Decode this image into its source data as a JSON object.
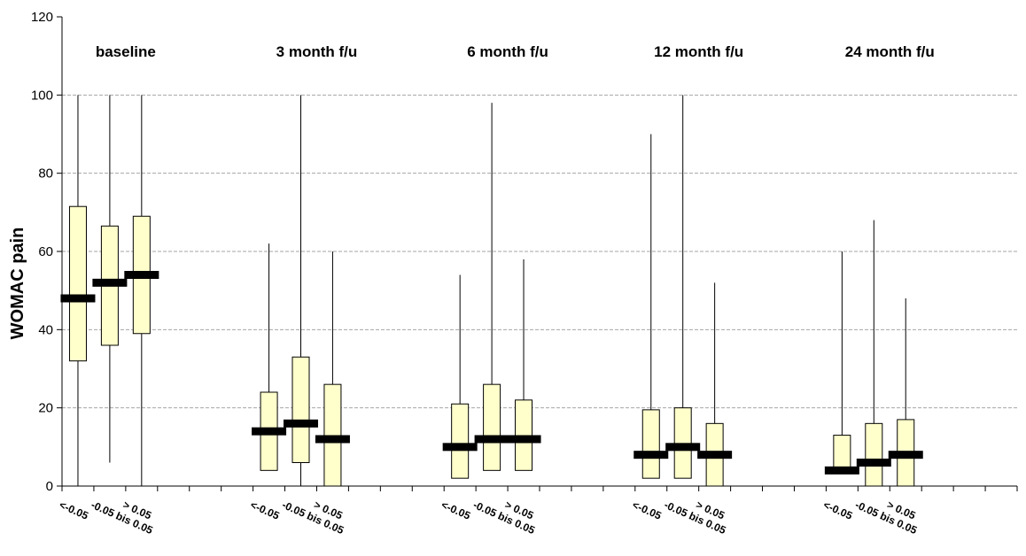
{
  "chart_data": {
    "type": "boxplot",
    "ylabel": "WOMAC pain",
    "xlabel": "",
    "ylim": [
      0,
      120
    ],
    "yticks": [
      0,
      20,
      40,
      60,
      80,
      100,
      120
    ],
    "grid": "horizontal-dashed",
    "colors": {
      "box_fill": "#ffffcc",
      "box_stroke": "#000000",
      "median": "#000000",
      "grid": "#a6a6a6"
    },
    "categories": [
      "<-0.05",
      "-0.05 bis 0.05",
      "> 0.05"
    ],
    "groups": [
      {
        "label": "baseline",
        "boxes": [
          {
            "category": "<-0.05",
            "min": 0,
            "q1": 32,
            "median": 48,
            "q3": 71.5,
            "max": 100
          },
          {
            "category": "-0.05 bis 0.05",
            "min": 6,
            "q1": 36,
            "median": 52,
            "q3": 66.5,
            "max": 100
          },
          {
            "category": "> 0.05",
            "min": 0,
            "q1": 39,
            "median": 54,
            "q3": 69,
            "max": 100
          }
        ]
      },
      {
        "label": "3 month f/u",
        "boxes": [
          {
            "category": "<-0.05",
            "min": 4,
            "q1": 4,
            "median": 14,
            "q3": 24,
            "max": 62
          },
          {
            "category": "-0.05 bis 0.05",
            "min": 0,
            "q1": 6,
            "median": 16,
            "q3": 33,
            "max": 100
          },
          {
            "category": "> 0.05",
            "min": 0,
            "q1": 0,
            "median": 12,
            "q3": 26,
            "max": 60
          }
        ]
      },
      {
        "label": "6 month f/u",
        "boxes": [
          {
            "category": "<-0.05",
            "min": 2,
            "q1": 2,
            "median": 10,
            "q3": 21,
            "max": 54
          },
          {
            "category": "-0.05 bis 0.05",
            "min": 4,
            "q1": 4,
            "median": 12,
            "q3": 26,
            "max": 98
          },
          {
            "category": "> 0.05",
            "min": 4,
            "q1": 4,
            "median": 12,
            "q3": 22,
            "max": 58
          }
        ]
      },
      {
        "label": "12 month f/u",
        "boxes": [
          {
            "category": "<-0.05",
            "min": 2,
            "q1": 2,
            "median": 8,
            "q3": 19.5,
            "max": 90
          },
          {
            "category": "-0.05 bis 0.05",
            "min": 2,
            "q1": 2,
            "median": 10,
            "q3": 20,
            "max": 100
          },
          {
            "category": "> 0.05",
            "min": 0,
            "q1": 0,
            "median": 8,
            "q3": 16,
            "max": 52
          }
        ]
      },
      {
        "label": "24 month f/u",
        "boxes": [
          {
            "category": "<-0.05",
            "min": 4,
            "q1": 4,
            "median": 4,
            "q3": 13,
            "max": 60
          },
          {
            "category": "-0.05 bis 0.05",
            "min": 0,
            "q1": 0,
            "median": 6,
            "q3": 16,
            "max": 68
          },
          {
            "category": "> 0.05",
            "min": 0,
            "q1": 0,
            "median": 8,
            "q3": 17,
            "max": 48
          }
        ]
      }
    ]
  }
}
